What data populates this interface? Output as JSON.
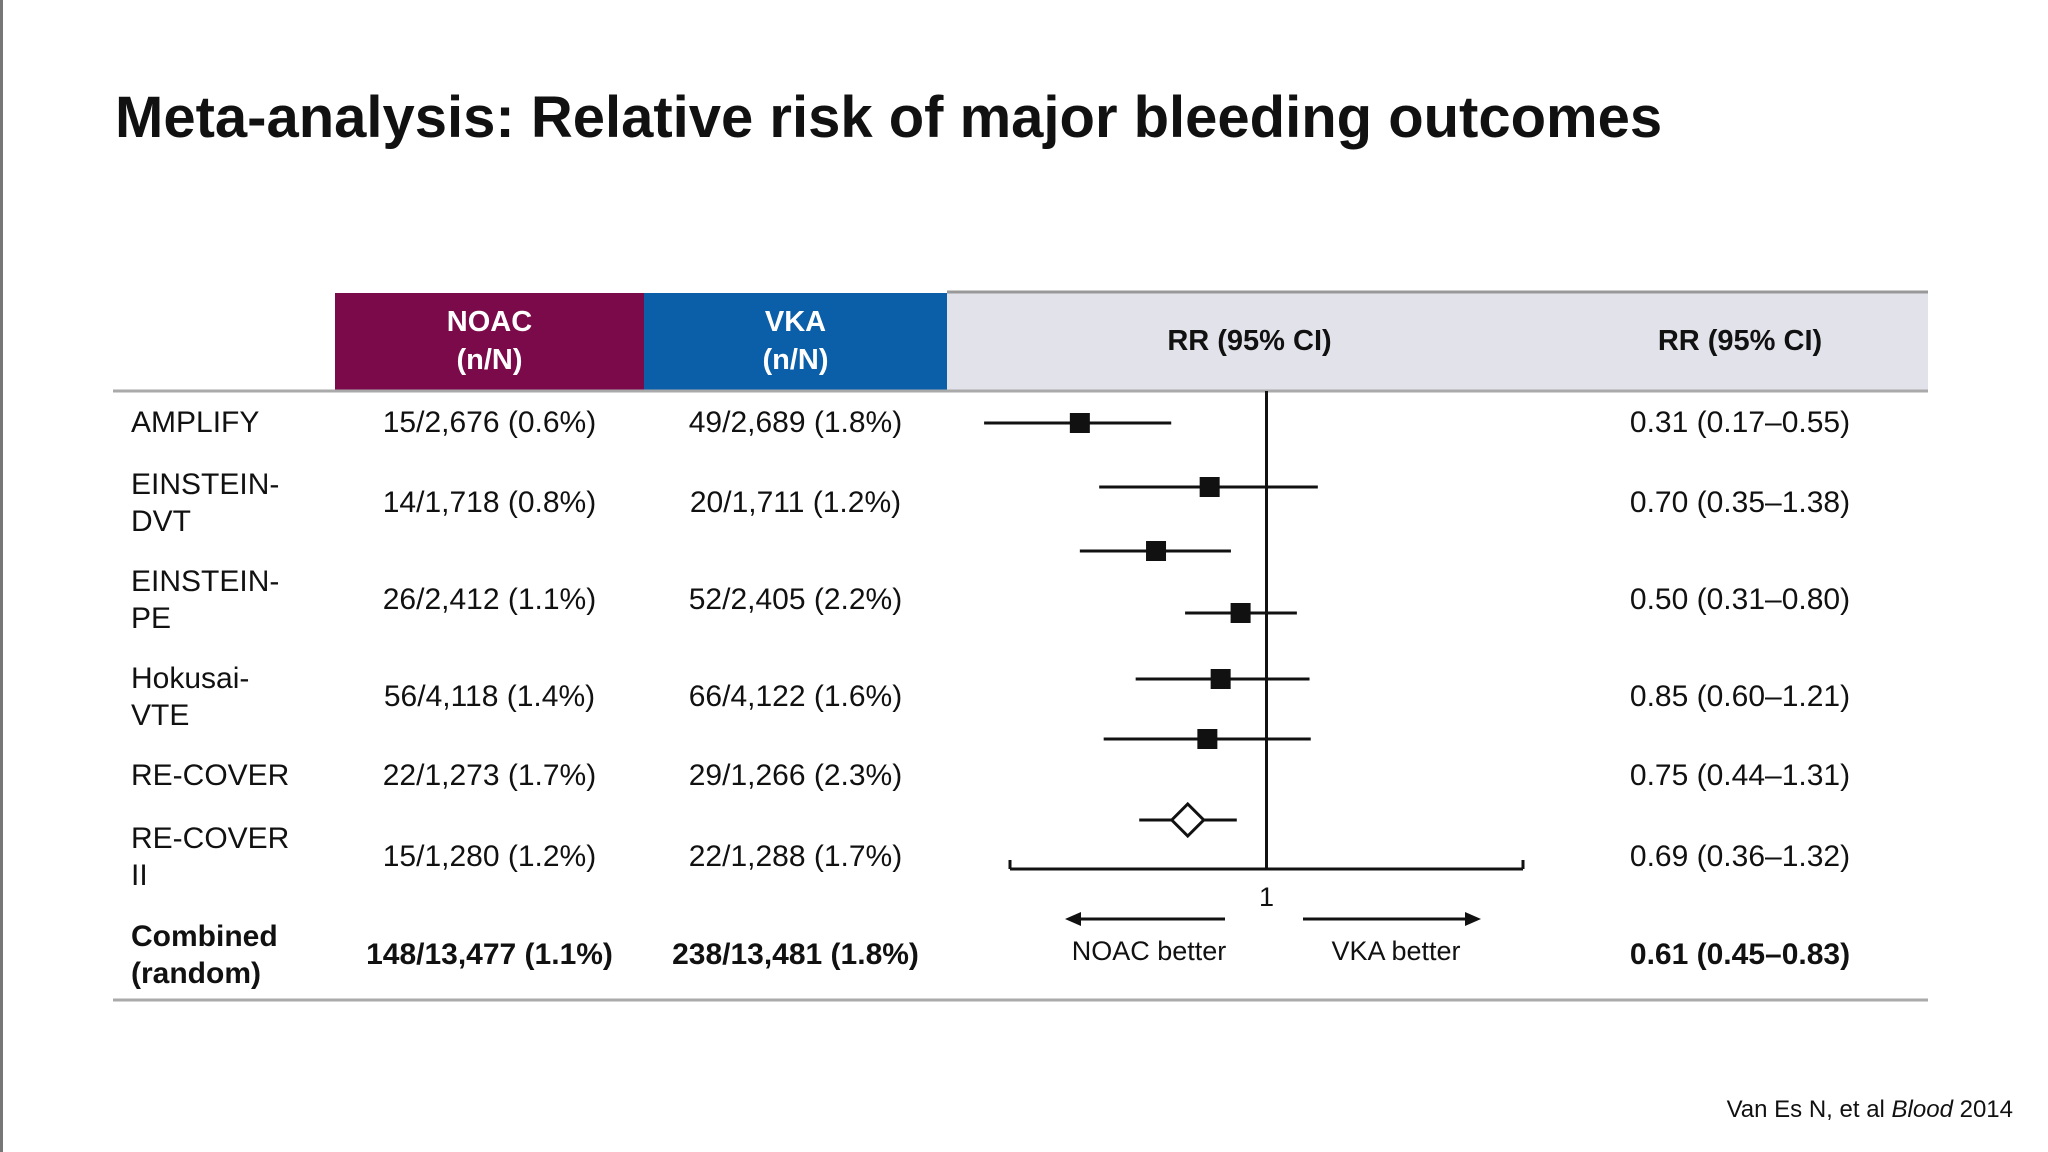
{
  "title": "Meta-analysis: Relative risk of major bleeding outcomes",
  "table": {
    "header": [
      "NOAC\n(n/N)",
      "VKA\n(n/N)",
      "RR (95% CI)",
      "RR (95% CI)"
    ],
    "rows": [
      [
        "AMPLIFY",
        "15/2,676 (0.6%)",
        "49/2,689 (1.8%)",
        "0.31 (0.17–0.55)"
      ],
      [
        "EINSTEIN-\nDVT",
        "14/1,718 (0.8%)",
        "20/1,711 (1.2%)",
        "0.70 (0.35–1.38)"
      ],
      [
        "EINSTEIN-\nPE",
        "26/2,412 (1.1%)",
        "52/2,405 (2.2%)",
        "0.50 (0.31–0.80)"
      ],
      [
        "Hokusai-\nVTE",
        "56/4,118 (1.4%)",
        "66/4,122 (1.6%)",
        "0.85 (0.60–1.21)"
      ],
      [
        "RE-COVER",
        "22/1,273 (1.7%)",
        "29/1,266 (2.3%)",
        "0.75 (0.44–1.31)"
      ],
      [
        "RE-COVER\nII",
        "15/1,280 (1.2%)",
        "22/1,288 (1.7%)",
        "0.69 (0.36–1.32)"
      ],
      [
        "Combined\n(random)",
        "148/13,477 (1.1%)",
        "238/13,481 (1.8%)",
        "0.61 (0.45–0.83)"
      ]
    ]
  },
  "chart_data": {
    "type": "forest",
    "xscale": "log",
    "xlim": [
      0.2,
      5
    ],
    "xticks": [
      1
    ],
    "values": [
      0.31,
      0.7,
      0.5,
      0.85,
      0.75,
      0.69
    ],
    "lower": [
      0.17,
      0.35,
      0.31,
      0.6,
      0.44,
      0.36
    ],
    "upper": [
      0.55,
      1.38,
      0.8,
      1.21,
      1.31,
      1.32
    ],
    "combined": {
      "value": 0.61,
      "lower": 0.45,
      "upper": 0.83
    },
    "left_label": "NOAC better",
    "right_label": "VKA better"
  },
  "citation": [
    "Van Es N, et al",
    "Blood",
    "2014"
  ]
}
